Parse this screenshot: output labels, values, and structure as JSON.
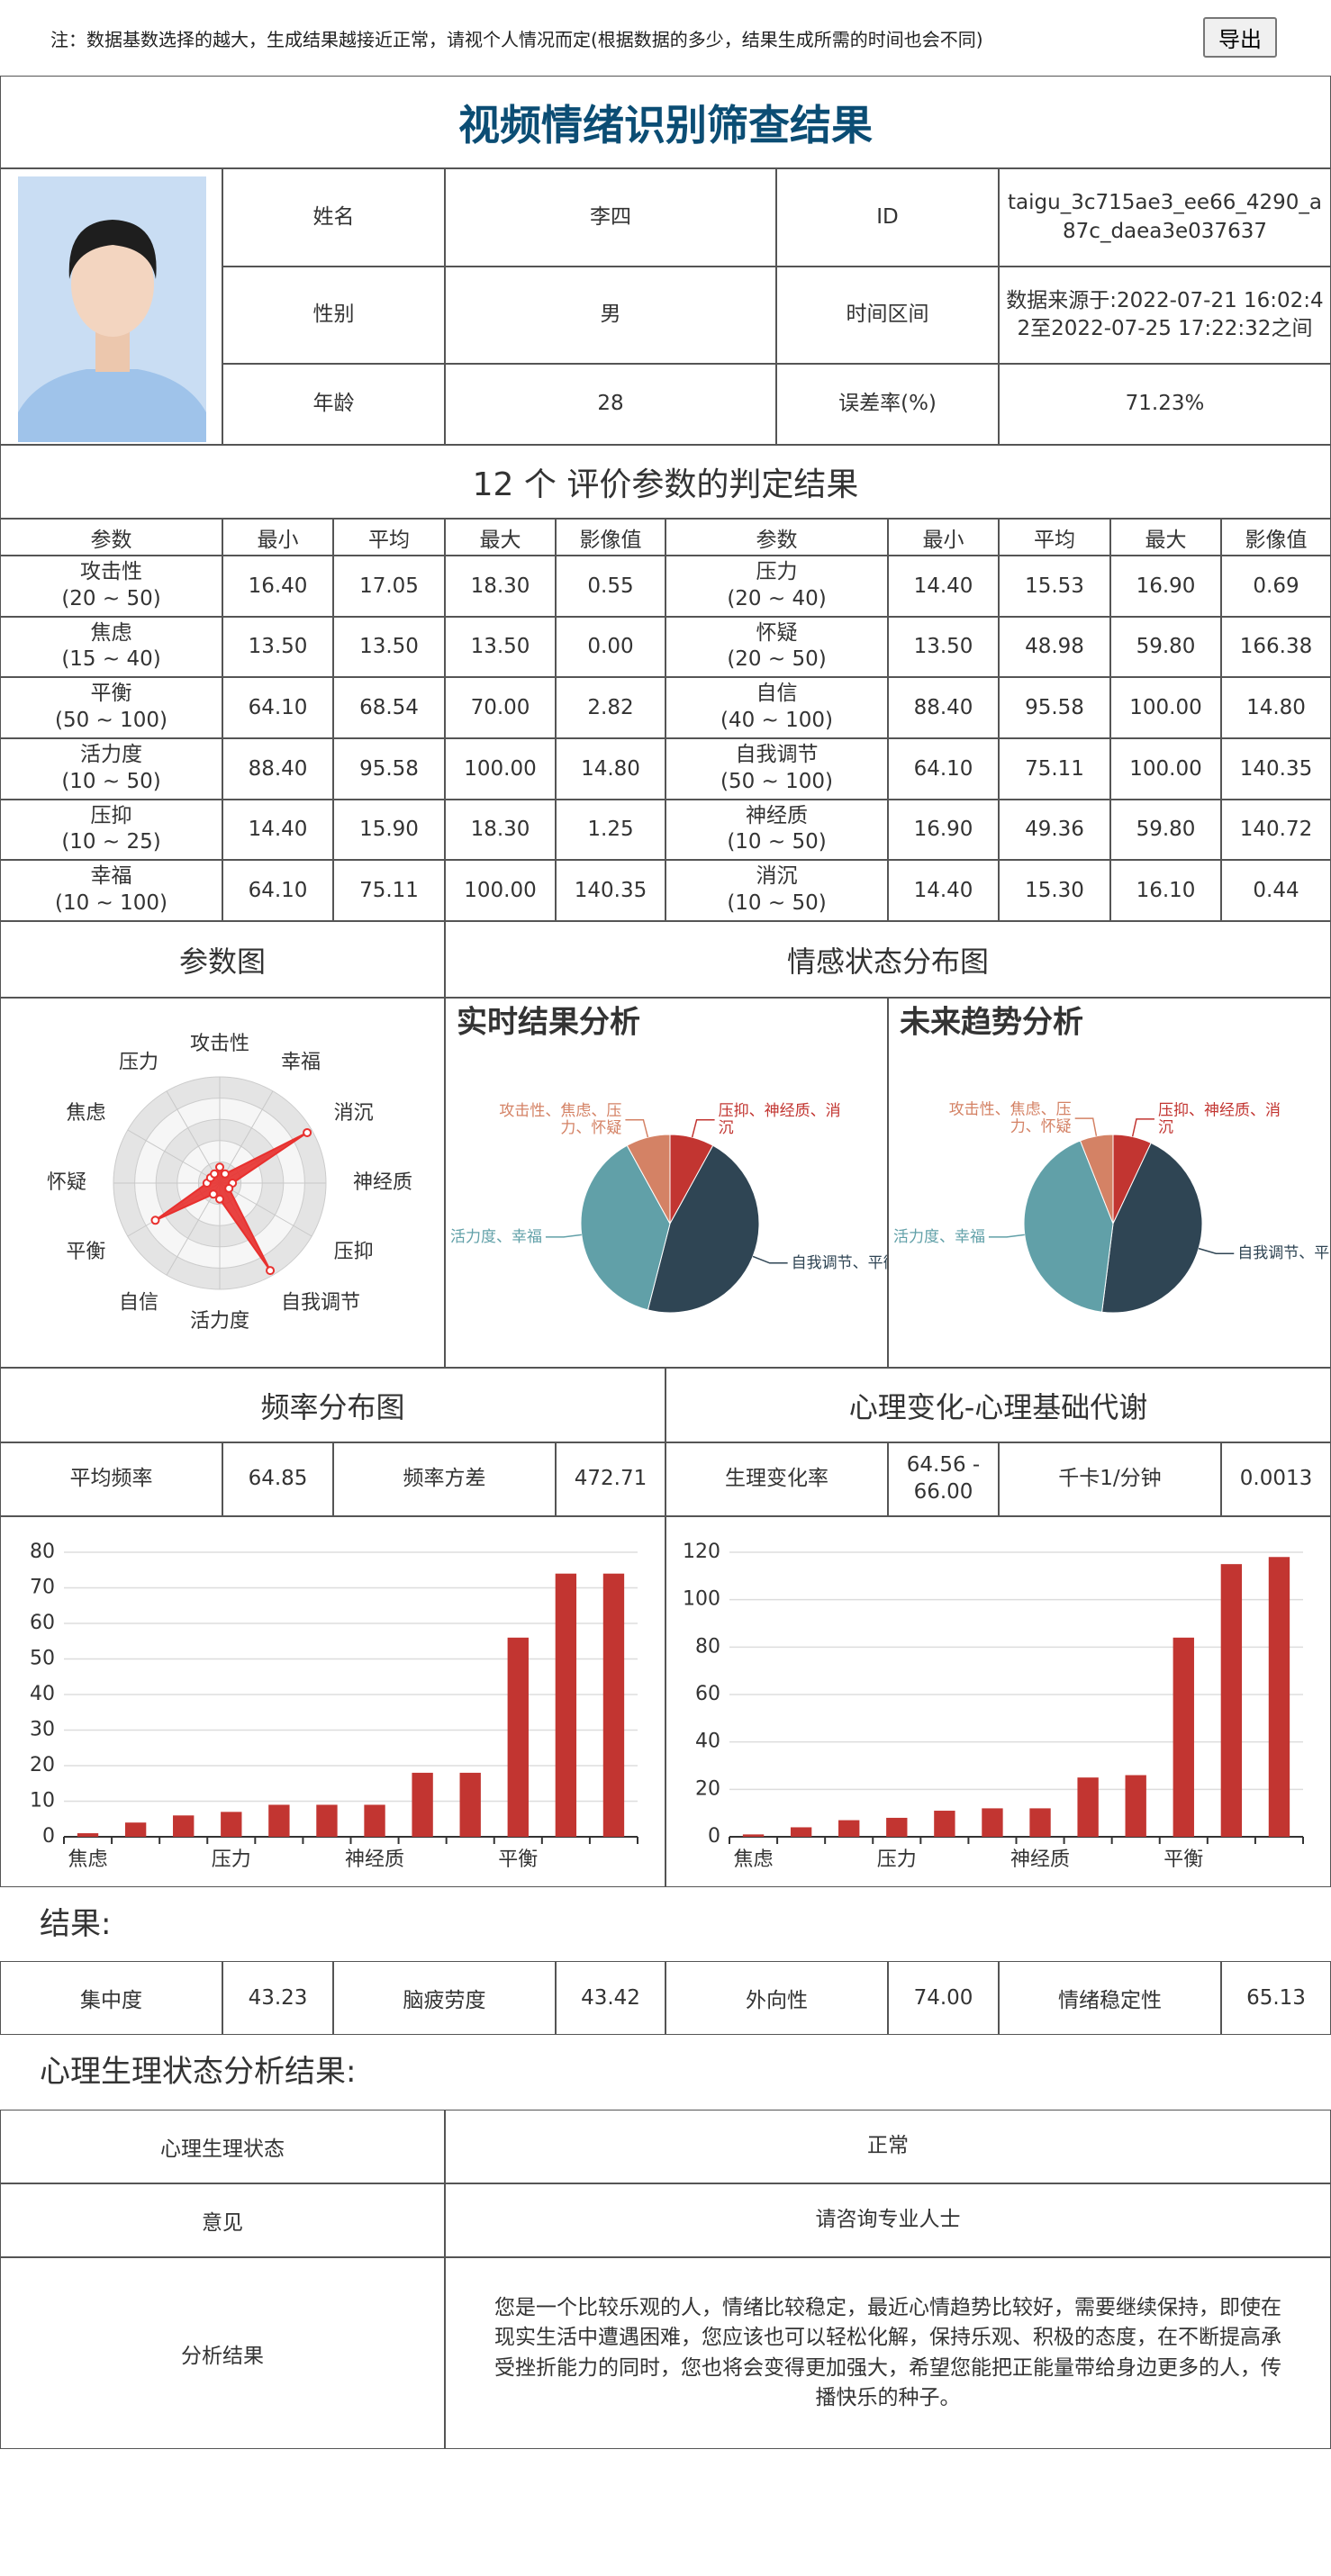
{
  "note": "注：数据基数选择的越大，生成结果越接近正常，请视个人情况而定(根据数据的多少，结果生成所需的时间也会不同)",
  "export_button": "导出",
  "title": "视频情绪识别筛查结果",
  "info": {
    "rows": [
      [
        "姓名",
        "李四",
        "ID",
        "taigu_3c715ae3_ee66_4290_a87c_daea3e037637"
      ],
      [
        "性别",
        "男",
        "时间区间",
        "数据来源于:2022-07-21 16:02:42至2022-07-25 17:22:32之间"
      ],
      [
        "年龄",
        "28",
        "误差率(%)",
        "71.23%"
      ]
    ]
  },
  "params": {
    "title": "12 个 评价参数的判定结果",
    "header": [
      "参数",
      "最小",
      "平均",
      "最大",
      "影像值",
      "参数",
      "最小",
      "平均",
      "最大",
      "影像值"
    ],
    "rows": [
      [
        [
          "攻击性",
          "(20 ~ 50)"
        ],
        "16.40",
        "17.05",
        "18.30",
        "0.55",
        [
          "压力",
          "(20 ~ 40)"
        ],
        "14.40",
        "15.53",
        "16.90",
        "0.69"
      ],
      [
        [
          "焦虑",
          "(15 ~ 40)"
        ],
        "13.50",
        "13.50",
        "13.50",
        "0.00",
        [
          "怀疑",
          "(20 ~ 50)"
        ],
        "13.50",
        "48.98",
        "59.80",
        "166.38"
      ],
      [
        [
          "平衡",
          "(50 ~ 100)"
        ],
        "64.10",
        "68.54",
        "70.00",
        "2.82",
        [
          "自信",
          "(40 ~ 100)"
        ],
        "88.40",
        "95.58",
        "100.00",
        "14.80"
      ],
      [
        [
          "活力度",
          "(10 ~ 50)"
        ],
        "88.40",
        "95.58",
        "100.00",
        "14.80",
        [
          "自我调节",
          "(50 ~ 100)"
        ],
        "64.10",
        "75.11",
        "100.00",
        "140.35"
      ],
      [
        [
          "压抑",
          "(10 ~ 25)"
        ],
        "14.40",
        "15.90",
        "18.30",
        "1.25",
        [
          "神经质",
          "(10 ~ 50)"
        ],
        "16.90",
        "49.36",
        "59.80",
        "140.72"
      ],
      [
        [
          "幸福",
          "(10 ~ 100)"
        ],
        "64.10",
        "75.11",
        "100.00",
        "140.35",
        [
          "消沉",
          "(10 ~ 50)"
        ],
        "14.40",
        "15.30",
        "16.10",
        "0.44"
      ]
    ]
  },
  "chart_headers": [
    "参数图",
    "情感状态分布图"
  ],
  "chart_data": [
    {
      "type": "radar",
      "categories": [
        "攻击性",
        "幸福",
        "消沉",
        "神经质",
        "压抑",
        "自我调节",
        "活力度",
        "自信",
        "平衡",
        "怀疑",
        "焦虑",
        "压力"
      ],
      "values": [
        15,
        10,
        95,
        12,
        10,
        95,
        15,
        12,
        70,
        12,
        10,
        10
      ],
      "ylim": [
        0,
        100
      ],
      "color": "#e8302e"
    },
    {
      "type": "pie",
      "title": "实时结果分析",
      "categories": [
        "压抑、神经质、消沉",
        "自我调节、平衡",
        "信、活力度、幸福",
        "攻击性、焦虑、压力、怀疑"
      ],
      "values": [
        8,
        46,
        38,
        8
      ],
      "colors": [
        "#c23531",
        "#2f4554",
        "#61a0a8",
        "#d48265"
      ]
    },
    {
      "type": "pie",
      "title": "未来趋势分析",
      "categories": [
        "压抑、神经质、消沉",
        "自我调节、平衡",
        "信、活力度、幸福",
        "攻击性、焦虑、压力、怀疑"
      ],
      "values": [
        7,
        45,
        42,
        6
      ],
      "colors": [
        "#c23531",
        "#2f4554",
        "#61a0a8",
        "#d48265"
      ]
    },
    {
      "type": "bar",
      "categories": [
        "焦虑",
        null,
        null,
        "压力",
        null,
        null,
        "神经质",
        null,
        null,
        "平衡",
        null,
        null
      ],
      "values": [
        1,
        4,
        6,
        7,
        9,
        9,
        9,
        18,
        18,
        56,
        74,
        74
      ],
      "color": "#c23531",
      "ylim": [
        0,
        80
      ],
      "yticks": [
        0,
        10,
        20,
        30,
        40,
        50,
        60,
        70,
        80
      ],
      "grid": true
    },
    {
      "type": "bar",
      "categories": [
        "焦虑",
        null,
        null,
        "压力",
        null,
        null,
        "神经质",
        null,
        null,
        "平衡",
        null,
        null
      ],
      "values": [
        1,
        4,
        7,
        8,
        11,
        12,
        12,
        25,
        26,
        84,
        115,
        118
      ],
      "color": "#c23531",
      "ylim": [
        0,
        120
      ],
      "yticks": [
        0,
        20,
        40,
        60,
        80,
        100,
        120
      ],
      "grid": true
    }
  ],
  "freq": {
    "headers": [
      "频率分布图",
      "心理变化-心理基础代谢"
    ],
    "row": [
      "平均频率",
      "64.85",
      "频率方差",
      "472.71",
      "生理变化率",
      "64.56 - 66.00",
      "千卡1/分钟",
      "0.0013"
    ]
  },
  "results": {
    "title": "结果:",
    "row": [
      "集中度",
      "43.23",
      "脑疲劳度",
      "43.42",
      "外向性",
      "74.00",
      "情绪稳定性",
      "65.13"
    ]
  },
  "analysis": {
    "title": "心理生理状态分析结果:",
    "rows": [
      [
        "心理生理状态",
        "正常"
      ],
      [
        "意见",
        "请咨询专业人士"
      ],
      [
        "分析结果",
        "您是一个比较乐观的人，情绪比较稳定，最近心情趋势比较好，需要继续保持，即使在现实生活中遭遇困难，您应该也可以轻松化解，保持乐观、积极的态度，在不断提高承受挫折能力的同时，您也将会变得更加强大，希望您能把正能量带给身边更多的人，传播快乐的种子。"
      ]
    ]
  }
}
